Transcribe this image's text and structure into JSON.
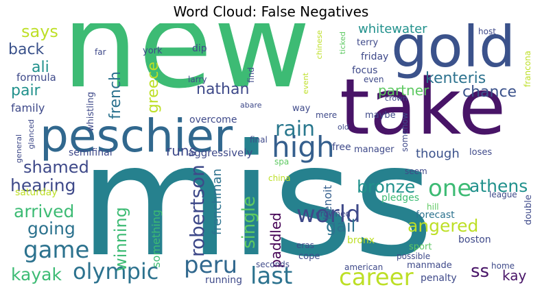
{
  "title": "Word Cloud: False Negatives",
  "words": [
    {
      "text": "new",
      "color": "#3dbb74"
    },
    {
      "text": "miss",
      "color": "#26818e"
    },
    {
      "text": "take",
      "color": "#481467"
    },
    {
      "text": "gold",
      "color": "#3b528b"
    },
    {
      "text": "peschier",
      "color": "#31688e"
    },
    {
      "text": "high",
      "color": "#355f8d"
    },
    {
      "text": "rain",
      "color": "#2a788e"
    },
    {
      "text": "world",
      "color": "#3e4989"
    },
    {
      "text": "one",
      "color": "#3dbb74"
    },
    {
      "text": "career",
      "color": "#bddf26"
    },
    {
      "text": "last",
      "color": "#2c728e"
    },
    {
      "text": "peru",
      "color": "#31688e"
    },
    {
      "text": "olympic",
      "color": "#2c728e"
    },
    {
      "text": "game",
      "color": "#2c728e"
    },
    {
      "text": "going",
      "color": "#2c728e"
    },
    {
      "text": "arrived",
      "color": "#3dbb74"
    },
    {
      "text": "hearing",
      "color": "#3e4989"
    },
    {
      "text": "shamed",
      "color": "#3e4989"
    },
    {
      "text": "kayak",
      "color": "#3dbb74"
    },
    {
      "text": "winning",
      "color": "#3dbb74"
    },
    {
      "text": "runs",
      "color": "#3e4989"
    },
    {
      "text": "robertson",
      "color": "#3e4989"
    },
    {
      "text": "single",
      "color": "#5ec962"
    },
    {
      "text": "frenchman",
      "color": "#2c728e"
    },
    {
      "text": "something",
      "color": "#3dbb74"
    },
    {
      "text": "paddled",
      "color": "#440154"
    },
    {
      "text": "gail",
      "color": "#2c728e"
    },
    {
      "text": "bronze",
      "color": "#21918c"
    },
    {
      "text": "angered",
      "color": "#bddf26"
    },
    {
      "text": "athens",
      "color": "#21918c"
    },
    {
      "text": "ss",
      "color": "#481467"
    },
    {
      "text": "kay",
      "color": "#481467"
    },
    {
      "text": "says",
      "color": "#bddf26"
    },
    {
      "text": "back",
      "color": "#3b528b"
    },
    {
      "text": "ali",
      "color": "#21918c"
    },
    {
      "text": "pair",
      "color": "#21918c"
    },
    {
      "text": "family",
      "color": "#3e4989"
    },
    {
      "text": "nathan",
      "color": "#3e4989"
    },
    {
      "text": "french",
      "color": "#2c728e"
    },
    {
      "text": "greece",
      "color": "#bddf26"
    },
    {
      "text": "whitewater",
      "color": "#21918c"
    },
    {
      "text": "kenteris",
      "color": "#2c728e"
    },
    {
      "text": "partner",
      "color": "#5ec962"
    },
    {
      "text": "chance",
      "color": "#3b528b"
    },
    {
      "text": "though",
      "color": "#3b528b"
    },
    {
      "text": "benoit",
      "color": "#355f8d"
    },
    {
      "text": "bronx",
      "color": "#bddf26"
    },
    {
      "text": "forecast",
      "color": "#2c728e"
    },
    {
      "text": "pledges",
      "color": "#3dbb74"
    },
    {
      "text": "seem",
      "color": "#3e4989"
    },
    {
      "text": "boston",
      "color": "#3e4989"
    },
    {
      "text": "sport",
      "color": "#5ec962"
    },
    {
      "text": "manmade",
      "color": "#3e4989"
    },
    {
      "text": "penalty",
      "color": "#3e4989"
    },
    {
      "text": "double",
      "color": "#3e4989"
    },
    {
      "text": "league",
      "color": "#3e4989"
    },
    {
      "text": "home",
      "color": "#3e4989"
    },
    {
      "text": "american",
      "color": "#3e4989"
    },
    {
      "text": "possible",
      "color": "#3e4989"
    },
    {
      "text": "seconds",
      "color": "#3e4989"
    },
    {
      "text": "cope",
      "color": "#3e4989"
    },
    {
      "text": "eras",
      "color": "#3e4989"
    },
    {
      "text": "crowned",
      "color": "#3e4989"
    },
    {
      "text": "hill",
      "color": "#5ec962"
    },
    {
      "text": "running",
      "color": "#3e4989"
    },
    {
      "text": "china",
      "color": "#bddf26"
    },
    {
      "text": "spa",
      "color": "#5ec962"
    },
    {
      "text": "final",
      "color": "#3e4989"
    },
    {
      "text": "aggressively",
      "color": "#3e4989"
    },
    {
      "text": "semifinal",
      "color": "#3e4989"
    },
    {
      "text": "saturday",
      "color": "#bddf26"
    },
    {
      "text": "general",
      "color": "#3e4989"
    },
    {
      "text": "glanced",
      "color": "#3e4989"
    },
    {
      "text": "whistling",
      "color": "#3e4989"
    },
    {
      "text": "formula",
      "color": "#3e4989"
    },
    {
      "text": "far",
      "color": "#3e4989"
    },
    {
      "text": "york",
      "color": "#3e4989"
    },
    {
      "text": "dip",
      "color": "#3e4989"
    },
    {
      "text": "larry",
      "color": "#3e4989"
    },
    {
      "text": "find",
      "color": "#3e4989"
    },
    {
      "text": "abare",
      "color": "#3e4989"
    },
    {
      "text": "overcome",
      "color": "#3e4989"
    },
    {
      "text": "way",
      "color": "#3e4989"
    },
    {
      "text": "mere",
      "color": "#3e4989"
    },
    {
      "text": "event",
      "color": "#bddf26"
    },
    {
      "text": "old",
      "color": "#3e4989"
    },
    {
      "text": "free",
      "color": "#3e4989"
    },
    {
      "text": "manager",
      "color": "#3e4989"
    },
    {
      "text": "somehow",
      "color": "#3e4989"
    },
    {
      "text": "loses",
      "color": "#3e4989"
    },
    {
      "text": "maybe",
      "color": "#3e4989"
    },
    {
      "text": "crown",
      "color": "#3e4989"
    },
    {
      "text": "chinese",
      "color": "#bddf26"
    },
    {
      "text": "ticked",
      "color": "#5ec962"
    },
    {
      "text": "terry",
      "color": "#3e4989"
    },
    {
      "text": "friday",
      "color": "#3e4989"
    },
    {
      "text": "focus",
      "color": "#3e4989"
    },
    {
      "text": "even",
      "color": "#3e4989"
    },
    {
      "text": "host",
      "color": "#3e4989"
    },
    {
      "text": "francona",
      "color": "#bddf26"
    }
  ]
}
